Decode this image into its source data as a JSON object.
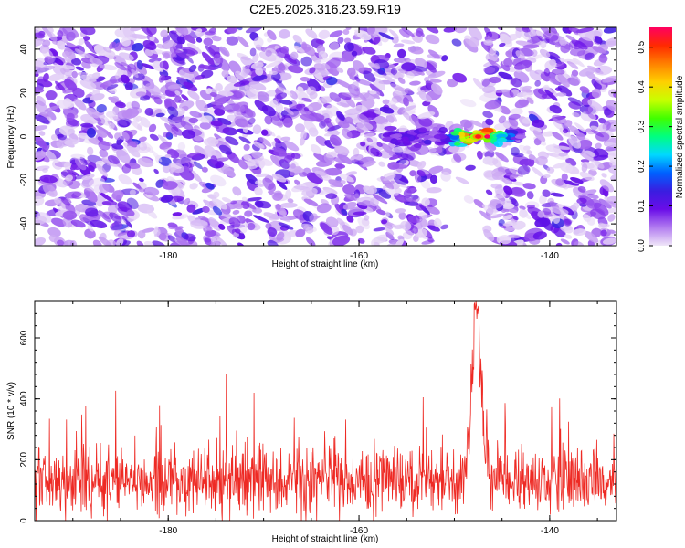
{
  "chart_data": [
    {
      "type": "heatmap",
      "title": "C2E5.2025.316.23.59.R19",
      "xlabel": "Height of straight line (km)",
      "ylabel": "Frequency (Hz)",
      "xlim": [
        -194,
        -133
      ],
      "ylim": [
        -50,
        50
      ],
      "x_ticks": [
        -180,
        -160,
        -140
      ],
      "y_ticks": [
        -40,
        -20,
        0,
        20,
        40
      ],
      "colorbar": {
        "label": "Normalized spectral amplitude",
        "range": [
          0.0,
          0.55
        ],
        "ticks": [
          0.0,
          0.1,
          0.2,
          0.3,
          0.4,
          0.5
        ],
        "colormap": [
          "#f0e6f8",
          "#b27cf0",
          "#6a0de8",
          "#3a1de0",
          "#0060ff",
          "#00d8ff",
          "#00ff80",
          "#40ff00",
          "#c8ff00",
          "#ffd000",
          "#ff8000",
          "#ff2a00",
          "#ff0060"
        ]
      },
      "feature": {
        "x": -147.5,
        "y": 0,
        "peak": 0.55,
        "x_span": [
          -157,
          -143
        ]
      },
      "grid": false
    },
    {
      "type": "line",
      "xlabel": "Height of straight line (km)",
      "ylabel": "SNR (10 * v/v)",
      "xlim": [
        -194,
        -133
      ],
      "ylim": [
        0,
        720
      ],
      "x_ticks": [
        -180,
        -160,
        -140
      ],
      "y_ticks": [
        0,
        200,
        400,
        600
      ],
      "baseline_mean": 130,
      "peak": {
        "x": -147.7,
        "y": 720
      },
      "color": "#ee2a24",
      "grid": false
    }
  ]
}
